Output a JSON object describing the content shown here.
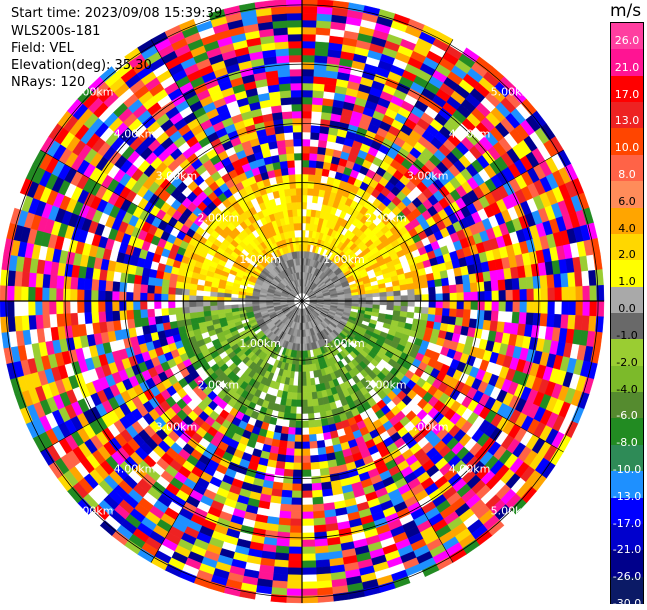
{
  "header": {
    "start_time": "Start time: 2023/09/08 15:39:39",
    "instrument": "WLS200s-181",
    "field": "Field: VEL",
    "elevation": "Elevation(deg): 35.30",
    "nrays": "NRays: 120"
  },
  "colorbar": {
    "unit": "m/s",
    "ticks": [
      "26.0",
      "21.0",
      "17.0",
      "13.0",
      "10.0",
      "8.0",
      "6.0",
      "4.0",
      "2.0",
      "1.0",
      "0.0",
      "-1.0",
      "-2.0",
      "-4.0",
      "-6.0",
      "-8.0",
      "-10.0",
      "-13.0",
      "-17.0",
      "-21.0",
      "-26.0",
      "-30.0"
    ],
    "bins": [
      {
        "label_dark": false,
        "color": "#ff3fa0"
      },
      {
        "label_dark": false,
        "color": "#ff1493"
      },
      {
        "label_dark": false,
        "color": "#ff0000"
      },
      {
        "label_dark": false,
        "color": "#ee2222"
      },
      {
        "label_dark": false,
        "color": "#ff4500"
      },
      {
        "label_dark": false,
        "color": "#ff6347"
      },
      {
        "label_dark": true,
        "color": "#ff8c5a"
      },
      {
        "label_dark": true,
        "color": "#ffa500"
      },
      {
        "label_dark": true,
        "color": "#ffd700"
      },
      {
        "label_dark": true,
        "color": "#ffff00"
      },
      {
        "label_dark": true,
        "color": "#a9a9a9"
      },
      {
        "label_dark": true,
        "color": "#696969"
      },
      {
        "label_dark": true,
        "color": "#9acd32"
      },
      {
        "label_dark": true,
        "color": "#7cba2a"
      },
      {
        "label_dark": false,
        "color": "#558b2f"
      },
      {
        "label_dark": false,
        "color": "#228b22"
      },
      {
        "label_dark": false,
        "color": "#2e8b57"
      },
      {
        "label_dark": false,
        "color": "#1e90ff"
      },
      {
        "label_dark": false,
        "color": "#0000ff"
      },
      {
        "label_dark": false,
        "color": "#0000cd"
      },
      {
        "label_dark": false,
        "color": "#00008b"
      },
      {
        "label_dark": false,
        "color": "#0b1a66"
      }
    ]
  },
  "ppi": {
    "range_rings_km": [
      1,
      2,
      3,
      4,
      5
    ],
    "range_labels": [
      "1.00km",
      "2.00km",
      "3.00km",
      "4.00km",
      "5.00km"
    ],
    "noise_colors": [
      "#ff1493",
      "#ff0000",
      "#ffff00",
      "#0000ff",
      "#00008b",
      "#9acd32",
      "#228b22",
      "#ff6347",
      "#ffa500",
      "#ff00ff",
      "#ee2222",
      "#1e90ff",
      "#0000cd",
      "#ff4500",
      "#ffd700"
    ],
    "near_positive_colors": [
      "#ffff00",
      "#ffd700",
      "#ffee00",
      "#ffa500"
    ],
    "near_zero_colors": [
      "#808080",
      "#a9a9a9",
      "#696969",
      "#999999"
    ],
    "near_negative_colors": [
      "#9acd32",
      "#7cba2a",
      "#558b2f",
      "#228b22"
    ]
  }
}
